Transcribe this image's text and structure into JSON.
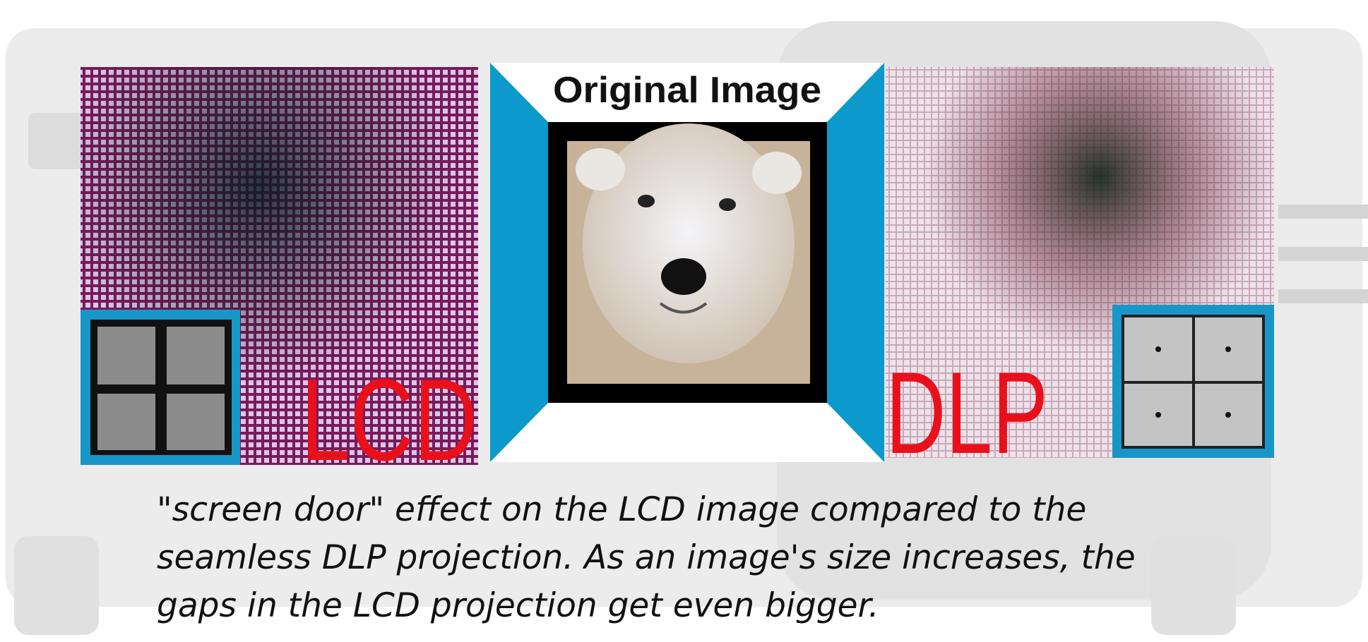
{
  "center": {
    "title": "Original Image"
  },
  "panels": {
    "lcd": "LCD",
    "dlp": "DLP"
  },
  "caption": [
    "\"screen door\" effect on the LCD image compared to the",
    "seamless DLP projection. As an image's size increases, the",
    "gaps in the LCD projection get even bigger."
  ]
}
